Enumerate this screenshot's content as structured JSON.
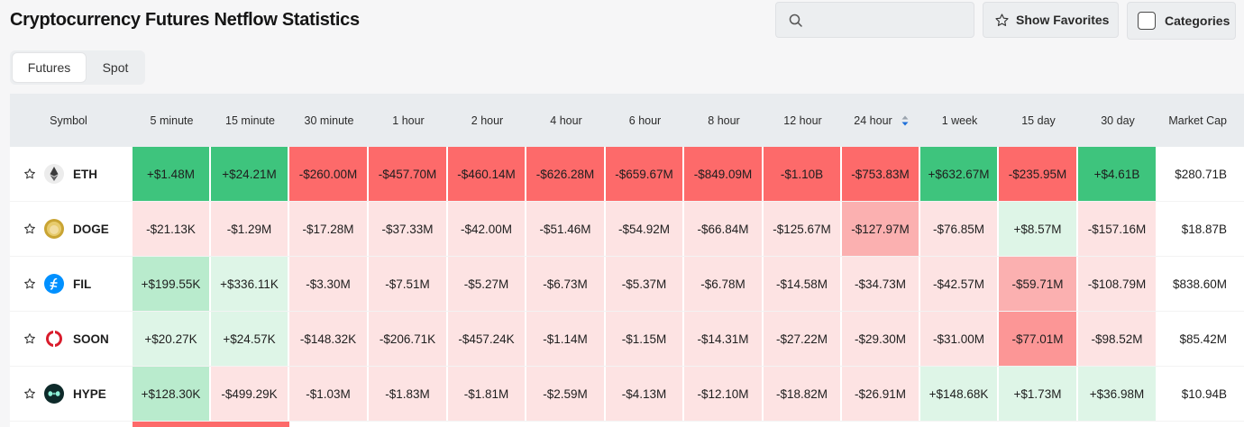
{
  "page": {
    "title": "Cryptocurrency Futures Netflow Statistics"
  },
  "toolbar": {
    "search_placeholder": "",
    "favorites_label": "Show Favorites",
    "categories_label": "Categories"
  },
  "tabs": [
    {
      "label": "Futures",
      "active": true
    },
    {
      "label": "Spot",
      "active": false
    }
  ],
  "table": {
    "columns": [
      "Symbol",
      "5 minute",
      "15 minute",
      "30 minute",
      "1 hour",
      "2 hour",
      "4 hour",
      "6 hour",
      "8 hour",
      "12 hour",
      "24 hour",
      "1 week",
      "15 day",
      "30 day",
      "Market Cap"
    ],
    "sorted_column": "24 hour",
    "rows": [
      {
        "symbol": "ETH",
        "icon": "eth-icon",
        "values": [
          "+$1.48M",
          "+$24.21M",
          "-$260.00M",
          "-$457.70M",
          "-$460.14M",
          "-$626.28M",
          "-$659.67M",
          "-$849.09M",
          "-$1.10B",
          "-$753.83M",
          "+$632.67M",
          "-$235.95M",
          "+$4.61B"
        ],
        "market_cap": "$280.71B"
      },
      {
        "symbol": "DOGE",
        "icon": "doge-icon",
        "values": [
          "-$21.13K",
          "-$1.29M",
          "-$17.28M",
          "-$37.33M",
          "-$42.00M",
          "-$51.46M",
          "-$54.92M",
          "-$66.84M",
          "-$125.67M",
          "-$127.97M",
          "-$76.85M",
          "+$8.57M",
          "-$157.16M"
        ],
        "market_cap": "$18.87B"
      },
      {
        "symbol": "FIL",
        "icon": "fil-icon",
        "values": [
          "+$199.55K",
          "+$336.11K",
          "-$3.30M",
          "-$7.51M",
          "-$5.27M",
          "-$6.73M",
          "-$5.37M",
          "-$6.78M",
          "-$14.58M",
          "-$34.73M",
          "-$42.57M",
          "-$59.71M",
          "-$108.79M"
        ],
        "market_cap": "$838.60M"
      },
      {
        "symbol": "SOON",
        "icon": "soon-icon",
        "values": [
          "+$20.27K",
          "+$24.57K",
          "-$148.32K",
          "-$206.71K",
          "-$457.24K",
          "-$1.14M",
          "-$1.15M",
          "-$14.31M",
          "-$27.22M",
          "-$29.30M",
          "-$31.00M",
          "-$77.01M",
          "-$98.52M"
        ],
        "market_cap": "$85.42M"
      },
      {
        "symbol": "HYPE",
        "icon": "hype-icon",
        "values": [
          "+$128.30K",
          "-$499.29K",
          "-$1.03M",
          "-$1.83M",
          "-$1.81M",
          "-$2.59M",
          "-$4.13M",
          "-$12.10M",
          "-$18.82M",
          "-$26.91M",
          "+$148.68K",
          "+$1.73M",
          "+$36.98M"
        ],
        "market_cap": "$10.94B"
      }
    ]
  },
  "colors": {
    "strong_green": "#3ec47d",
    "mid_green": "#b9ebcd",
    "light_green": "#def5e7",
    "strong_red": "#fd6a6a",
    "mid_red": "#fbb0b0",
    "light_red": "#fde3e3",
    "lighter_red": "#feeaea"
  }
}
